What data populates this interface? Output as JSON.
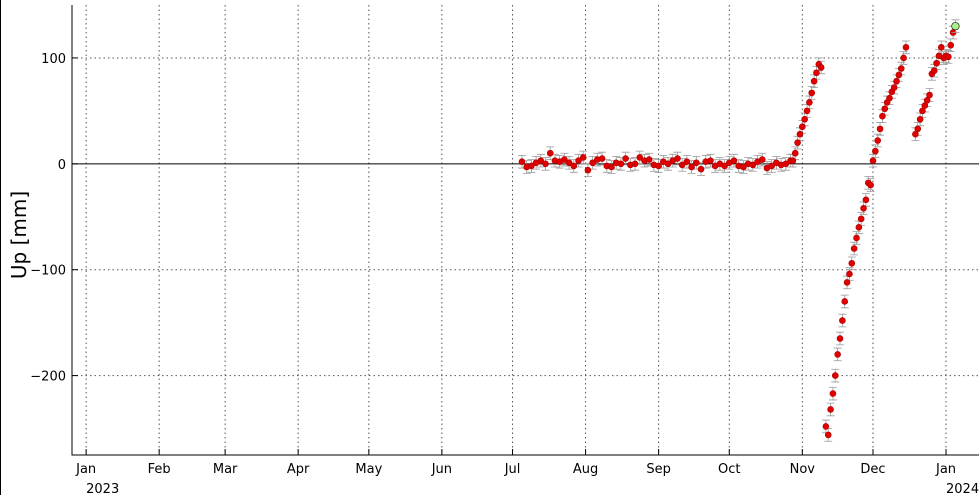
{
  "chart_data": {
    "type": "scatter",
    "ylabel": "Up [mm]",
    "xlim": [
      -6,
      379
    ],
    "ylim": [
      -275,
      150
    ],
    "xticks": [
      {
        "value": 0,
        "label": "Jan"
      },
      {
        "value": 31,
        "label": "Feb"
      },
      {
        "value": 59,
        "label": "Mar"
      },
      {
        "value": 90,
        "label": "Apr"
      },
      {
        "value": 120,
        "label": "May"
      },
      {
        "value": 151,
        "label": "Jun"
      },
      {
        "value": 181,
        "label": "Jul"
      },
      {
        "value": 212,
        "label": "Aug"
      },
      {
        "value": 243,
        "label": "Sep"
      },
      {
        "value": 273,
        "label": "Oct"
      },
      {
        "value": 304,
        "label": "Nov"
      },
      {
        "value": 334,
        "label": "Dec"
      },
      {
        "value": 365,
        "label": "Jan"
      }
    ],
    "x_year_labels": [
      {
        "value": 0,
        "label": "2023"
      },
      {
        "value": 365,
        "label": "2024"
      }
    ],
    "yticks": [
      {
        "value": -200,
        "label": "−200"
      },
      {
        "value": -100,
        "label": "−100"
      },
      0,
      100
    ],
    "grid": true,
    "series": [
      {
        "color": "#e00000",
        "error": 6,
        "x": [
          185,
          187,
          189,
          191,
          193,
          195,
          197,
          199,
          201,
          203,
          205,
          207,
          209,
          211,
          213,
          215,
          217,
          219,
          221,
          223,
          225,
          227,
          229,
          231,
          233,
          235,
          237,
          239,
          241,
          243,
          245,
          247,
          249,
          251,
          253,
          255,
          257,
          259,
          261,
          263,
          265,
          267,
          269,
          271,
          273,
          275,
          277,
          279,
          281,
          283,
          285,
          287,
          289,
          291,
          293,
          295,
          297,
          299,
          300,
          301,
          302,
          303,
          304,
          305,
          306,
          307,
          308,
          309,
          310,
          311,
          312,
          314,
          315,
          316,
          317,
          318,
          319,
          320,
          321,
          322,
          323,
          324,
          325,
          326,
          327,
          328,
          329,
          330,
          331,
          332,
          333,
          334,
          335,
          336,
          337,
          338,
          339,
          340,
          341,
          342,
          343,
          344,
          345,
          346,
          347,
          348,
          352,
          353,
          354,
          355,
          356,
          357,
          358,
          359,
          360,
          361,
          362,
          363,
          364,
          365,
          366,
          367,
          368
        ],
        "values": [
          2,
          -3,
          -2,
          1,
          3,
          0,
          10,
          3,
          2,
          4,
          1,
          -2,
          3,
          6,
          -6,
          1,
          4,
          5,
          -2,
          -3,
          1,
          0,
          5,
          -1,
          0,
          6,
          3,
          4,
          -1,
          -2,
          2,
          0,
          3,
          5,
          -1,
          2,
          -3,
          1,
          -5,
          2,
          3,
          -2,
          0,
          -2,
          1,
          3,
          -2,
          -3,
          0,
          -1,
          2,
          4,
          -4,
          -2,
          1,
          -1,
          0,
          3,
          3,
          10,
          20,
          28,
          35,
          42,
          50,
          58,
          67,
          78,
          86,
          94,
          91,
          -248,
          -256,
          -232,
          -217,
          -200,
          -180,
          -165,
          -148,
          -130,
          -112,
          -104,
          -94,
          -80,
          -70,
          -60,
          -52,
          -42,
          -34,
          -18,
          -20,
          3,
          12,
          22,
          33,
          45,
          52,
          58,
          62,
          68,
          72,
          78,
          84,
          90,
          100,
          110,
          28,
          33,
          42,
          50,
          55,
          60,
          65,
          85,
          88,
          95,
          102,
          110,
          100,
          102,
          101,
          112,
          124
        ]
      },
      {
        "color": "#a8f08a",
        "error": 6,
        "x": [
          369
        ],
        "values": [
          130
        ]
      }
    ]
  }
}
